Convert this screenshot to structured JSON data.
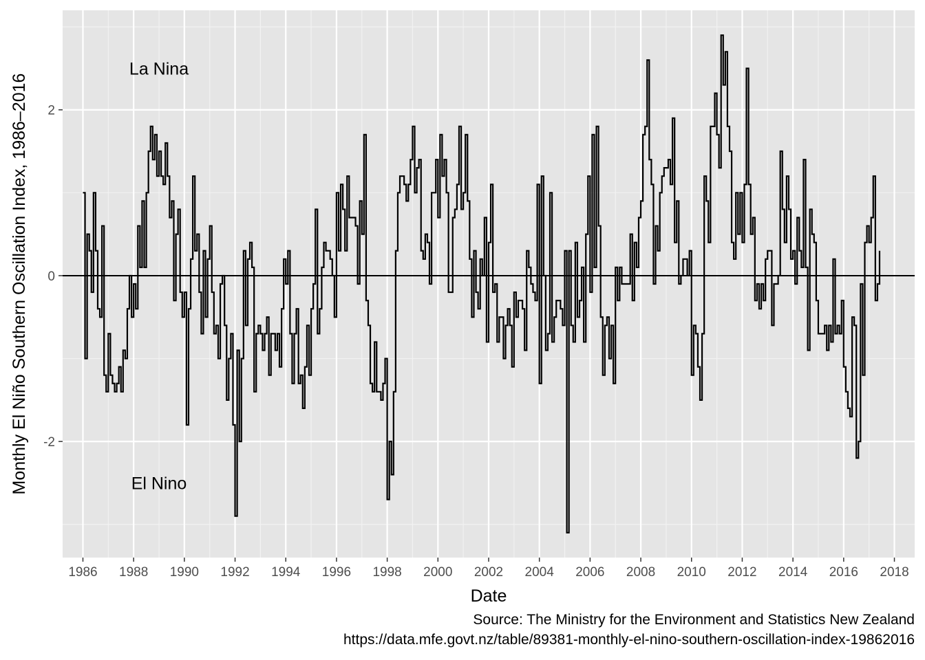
{
  "chart_data": {
    "type": "line",
    "style": "step",
    "title": "",
    "xlabel": "Date",
    "ylabel": "Monthly El Niño Southern Oscillation Index, 1986–2016",
    "caption_line1": "Source: The Ministry for the Environment and Statistics New Zealand",
    "caption_line2": "https://data.mfe.govt.nz/table/89381-monthly-el-nino-southern-oscillation-index-19862016",
    "annotations": [
      {
        "text": "La Nina",
        "x": 1989.0,
        "y": 2.5
      },
      {
        "text": "El Nino",
        "x": 1989.0,
        "y": -2.5
      }
    ],
    "xlim": [
      1985.2,
      2018.8
    ],
    "ylim": [
      -3.4,
      3.2
    ],
    "x_ticks": [
      1986,
      1988,
      1990,
      1992,
      1994,
      1996,
      1998,
      2000,
      2002,
      2004,
      2006,
      2008,
      2010,
      2012,
      2014,
      2016,
      2018
    ],
    "x_tick_labels": [
      "1986",
      "1988",
      "1990",
      "1992",
      "1994",
      "1996",
      "1998",
      "2000",
      "2002",
      "2004",
      "2006",
      "2008",
      "2010",
      "2012",
      "2014",
      "2016",
      "2018"
    ],
    "y_ticks": [
      -2,
      0,
      2
    ],
    "y_tick_labels": [
      "-2",
      "0",
      "2"
    ],
    "hline": 0,
    "grid": true,
    "background": "#e5e5e5",
    "line_color": "#000000",
    "series": [
      {
        "start": 1986.0,
        "step_years": 0.08333,
        "values": [
          1.0,
          -1.0,
          0.5,
          0.3,
          -0.2,
          1.0,
          0.3,
          -0.4,
          -0.5,
          0.6,
          -1.2,
          -1.4,
          -0.7,
          -1.2,
          -1.3,
          -1.4,
          -1.3,
          -1.1,
          -1.4,
          -0.9,
          -1.0,
          -0.4,
          -0.0,
          -0.5,
          -0.1,
          -0.4,
          0.6,
          0.1,
          0.9,
          0.1,
          1.0,
          1.5,
          1.8,
          1.4,
          1.7,
          1.2,
          1.5,
          1.2,
          1.1,
          1.6,
          1.2,
          0.7,
          0.9,
          -0.3,
          0.5,
          0.8,
          -0.2,
          -0.5,
          -0.2,
          -1.8,
          -0.4,
          0.2,
          1.2,
          0.3,
          0.5,
          -0.2,
          -0.7,
          0.3,
          -0.5,
          0.2,
          0.6,
          -0.2,
          -0.7,
          -0.6,
          -1.0,
          -0.1,
          0.0,
          -0.6,
          -1.5,
          -1.0,
          -0.7,
          -1.8,
          -2.9,
          -0.9,
          -2.0,
          -1.0,
          0.3,
          -0.6,
          0.2,
          0.4,
          0.1,
          -1.4,
          -0.7,
          -0.6,
          -0.7,
          -0.9,
          -0.7,
          -0.5,
          -1.2,
          -0.7,
          -0.7,
          -0.9,
          -0.7,
          -1.1,
          -0.4,
          0.2,
          -0.1,
          0.3,
          -0.7,
          -1.3,
          -0.7,
          -0.4,
          -1.3,
          -1.2,
          -1.6,
          -1.1,
          -0.6,
          -1.2,
          -0.4,
          -0.1,
          0.8,
          -0.7,
          -0.4,
          0.1,
          0.4,
          0.3,
          0.3,
          0.2,
          0.0,
          -0.5,
          1.0,
          0.3,
          1.1,
          0.8,
          0.3,
          1.2,
          0.7,
          0.7,
          0.7,
          0.6,
          -0.1,
          0.9,
          0.5,
          1.7,
          -0.3,
          -0.6,
          -1.3,
          -1.4,
          -0.8,
          -1.4,
          -1.4,
          -1.5,
          -1.3,
          -1.0,
          -2.7,
          -2.0,
          -2.4,
          -1.4,
          0.3,
          1.0,
          1.2,
          1.2,
          1.1,
          0.9,
          1.1,
          1.4,
          1.8,
          1.0,
          1.3,
          1.4,
          0.3,
          0.2,
          0.5,
          0.4,
          -0.1,
          1.0,
          1.0,
          1.4,
          0.7,
          1.7,
          1.2,
          1.4,
          1.0,
          -0.2,
          -0.2,
          0.7,
          0.8,
          1.1,
          1.8,
          0.8,
          1.0,
          1.7,
          0.9,
          0.2,
          -0.5,
          0.3,
          -0.2,
          -0.4,
          0.2,
          0.0,
          0.7,
          -0.8,
          0.4,
          1.1,
          -0.2,
          -0.1,
          -0.8,
          -0.5,
          -0.5,
          -1.0,
          -0.6,
          -0.4,
          -0.6,
          -1.1,
          -0.2,
          -0.5,
          -0.3,
          -0.3,
          -0.4,
          -0.9,
          0.3,
          0.1,
          -0.1,
          -0.2,
          -0.3,
          1.1,
          -1.3,
          1.2,
          0.0,
          -0.9,
          -0.7,
          1.0,
          -0.8,
          -0.5,
          -0.3,
          -0.3,
          -0.4,
          -0.6,
          0.3,
          -3.1,
          0.3,
          -0.6,
          -0.8,
          0.4,
          -0.5,
          -0.3,
          0.1,
          -0.8,
          0.5,
          1.2,
          -0.2,
          1.7,
          0.1,
          1.8,
          0.6,
          -0.5,
          -1.2,
          -0.6,
          -0.5,
          -1.0,
          -0.6,
          -1.3,
          0.1,
          -0.3,
          0.1,
          -0.1,
          -0.1,
          -0.1,
          -0.1,
          0.5,
          -0.3,
          0.4,
          0.1,
          0.7,
          0.9,
          1.7,
          1.8,
          2.6,
          1.4,
          1.1,
          -0.1,
          0.6,
          0.3,
          1.0,
          1.2,
          1.3,
          1.3,
          1.4,
          1.1,
          1.9,
          0.4,
          0.9,
          -0.1,
          0.0,
          0.2,
          0.2,
          0.0,
          0.3,
          -1.2,
          -0.6,
          -0.7,
          -1.1,
          -1.5,
          -0.7,
          1.2,
          0.9,
          0.4,
          1.8,
          1.8,
          2.2,
          1.7,
          1.3,
          2.9,
          2.3,
          2.7,
          1.8,
          1.5,
          0.4,
          0.2,
          1.0,
          0.5,
          1.0,
          0.4,
          1.1,
          2.5,
          1.1,
          0.5,
          0.7,
          -0.3,
          -0.1,
          -0.4,
          -0.1,
          -0.3,
          0.2,
          0.3,
          0.3,
          -0.6,
          -0.1,
          -0.1,
          0.0,
          1.5,
          0.8,
          0.4,
          1.2,
          0.8,
          0.2,
          0.3,
          -0.1,
          0.7,
          0.3,
          0.1,
          1.4,
          0.1,
          -0.9,
          0.8,
          0.5,
          0.4,
          -0.3,
          -0.7,
          -0.7,
          -0.7,
          -0.6,
          -0.9,
          -0.6,
          -0.8,
          0.2,
          -0.7,
          -0.6,
          -0.7,
          -0.3,
          -1.1,
          -1.4,
          -1.6,
          -1.7,
          -0.5,
          -0.6,
          -2.2,
          -2.0,
          -0.1,
          -1.2,
          0.4,
          0.6,
          0.4,
          0.7,
          1.2,
          -0.3,
          -0.1,
          0.3
        ]
      }
    ]
  }
}
